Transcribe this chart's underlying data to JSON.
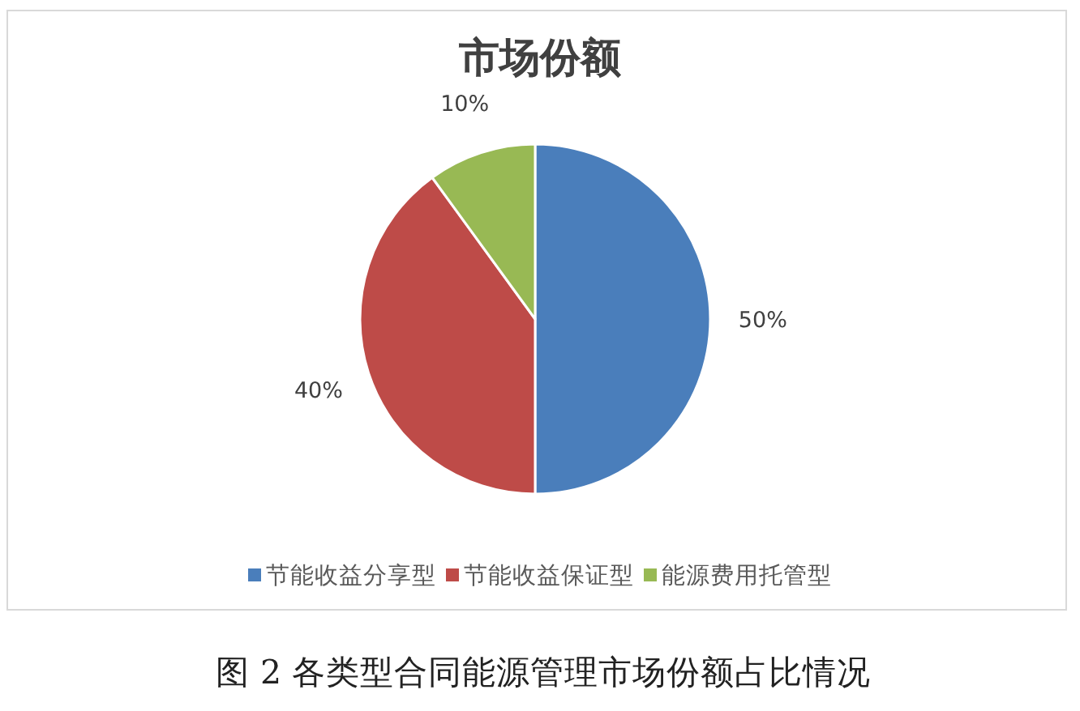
{
  "chart_data": {
    "type": "pie",
    "title": "市场份额",
    "categories": [
      "节能收益分享型",
      "节能收益保证型",
      "能源费用托管型"
    ],
    "values": [
      50,
      40,
      10
    ],
    "colors": [
      "#4a7ebb",
      "#be4b48",
      "#98b954"
    ],
    "value_labels": [
      "50%",
      "40%",
      "10%"
    ],
    "legend": "bottom",
    "annotations": [
      "图 2 各类型合同能源管理市场份额占比情况"
    ]
  }
}
